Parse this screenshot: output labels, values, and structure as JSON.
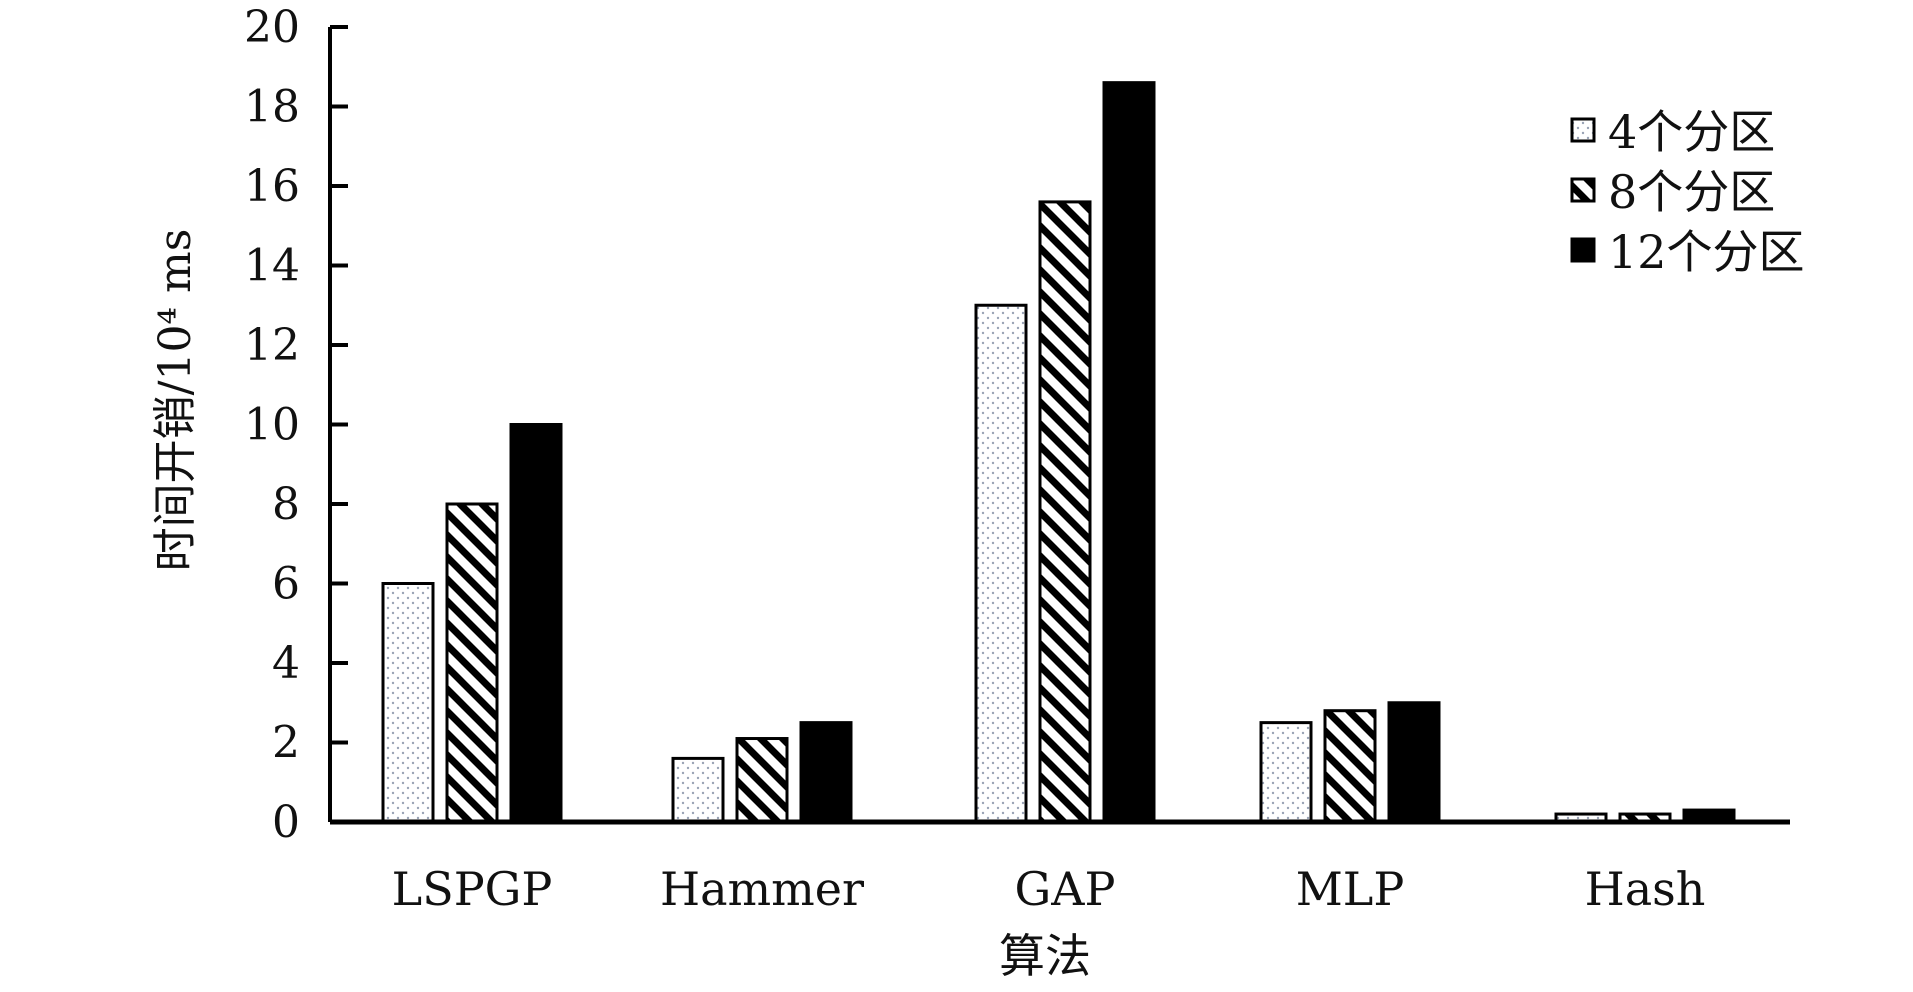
{
  "chart_data": {
    "type": "bar",
    "title": "",
    "xlabel": "算法",
    "ylabel": "时间开销/10⁴ ms",
    "ylim": [
      0,
      20
    ],
    "yticks": [
      0,
      2,
      4,
      6,
      8,
      10,
      12,
      14,
      16,
      18,
      20
    ],
    "ytick_labels": [
      "0",
      "2",
      "4",
      "6",
      "8",
      "10",
      "12",
      "14",
      "16",
      "18",
      "20"
    ],
    "categories": [
      "LSPGP",
      "Hammer",
      "GAP",
      "MLP",
      "Hash"
    ],
    "series": [
      {
        "name": "4个分区",
        "pattern": "dots",
        "values": [
          6.0,
          1.6,
          13.0,
          2.5,
          0.2
        ]
      },
      {
        "name": "8个分区",
        "pattern": "diagonal-stripes",
        "values": [
          8.0,
          2.1,
          15.6,
          2.8,
          0.2
        ]
      },
      {
        "name": "12个分区",
        "pattern": "solid",
        "values": [
          10.0,
          2.5,
          18.6,
          3.0,
          0.3
        ]
      }
    ],
    "legend_position": "top-right",
    "grid": false,
    "colors": {
      "ink": "#000000",
      "dot": "#9aa3b5",
      "background": "#ffffff"
    }
  }
}
